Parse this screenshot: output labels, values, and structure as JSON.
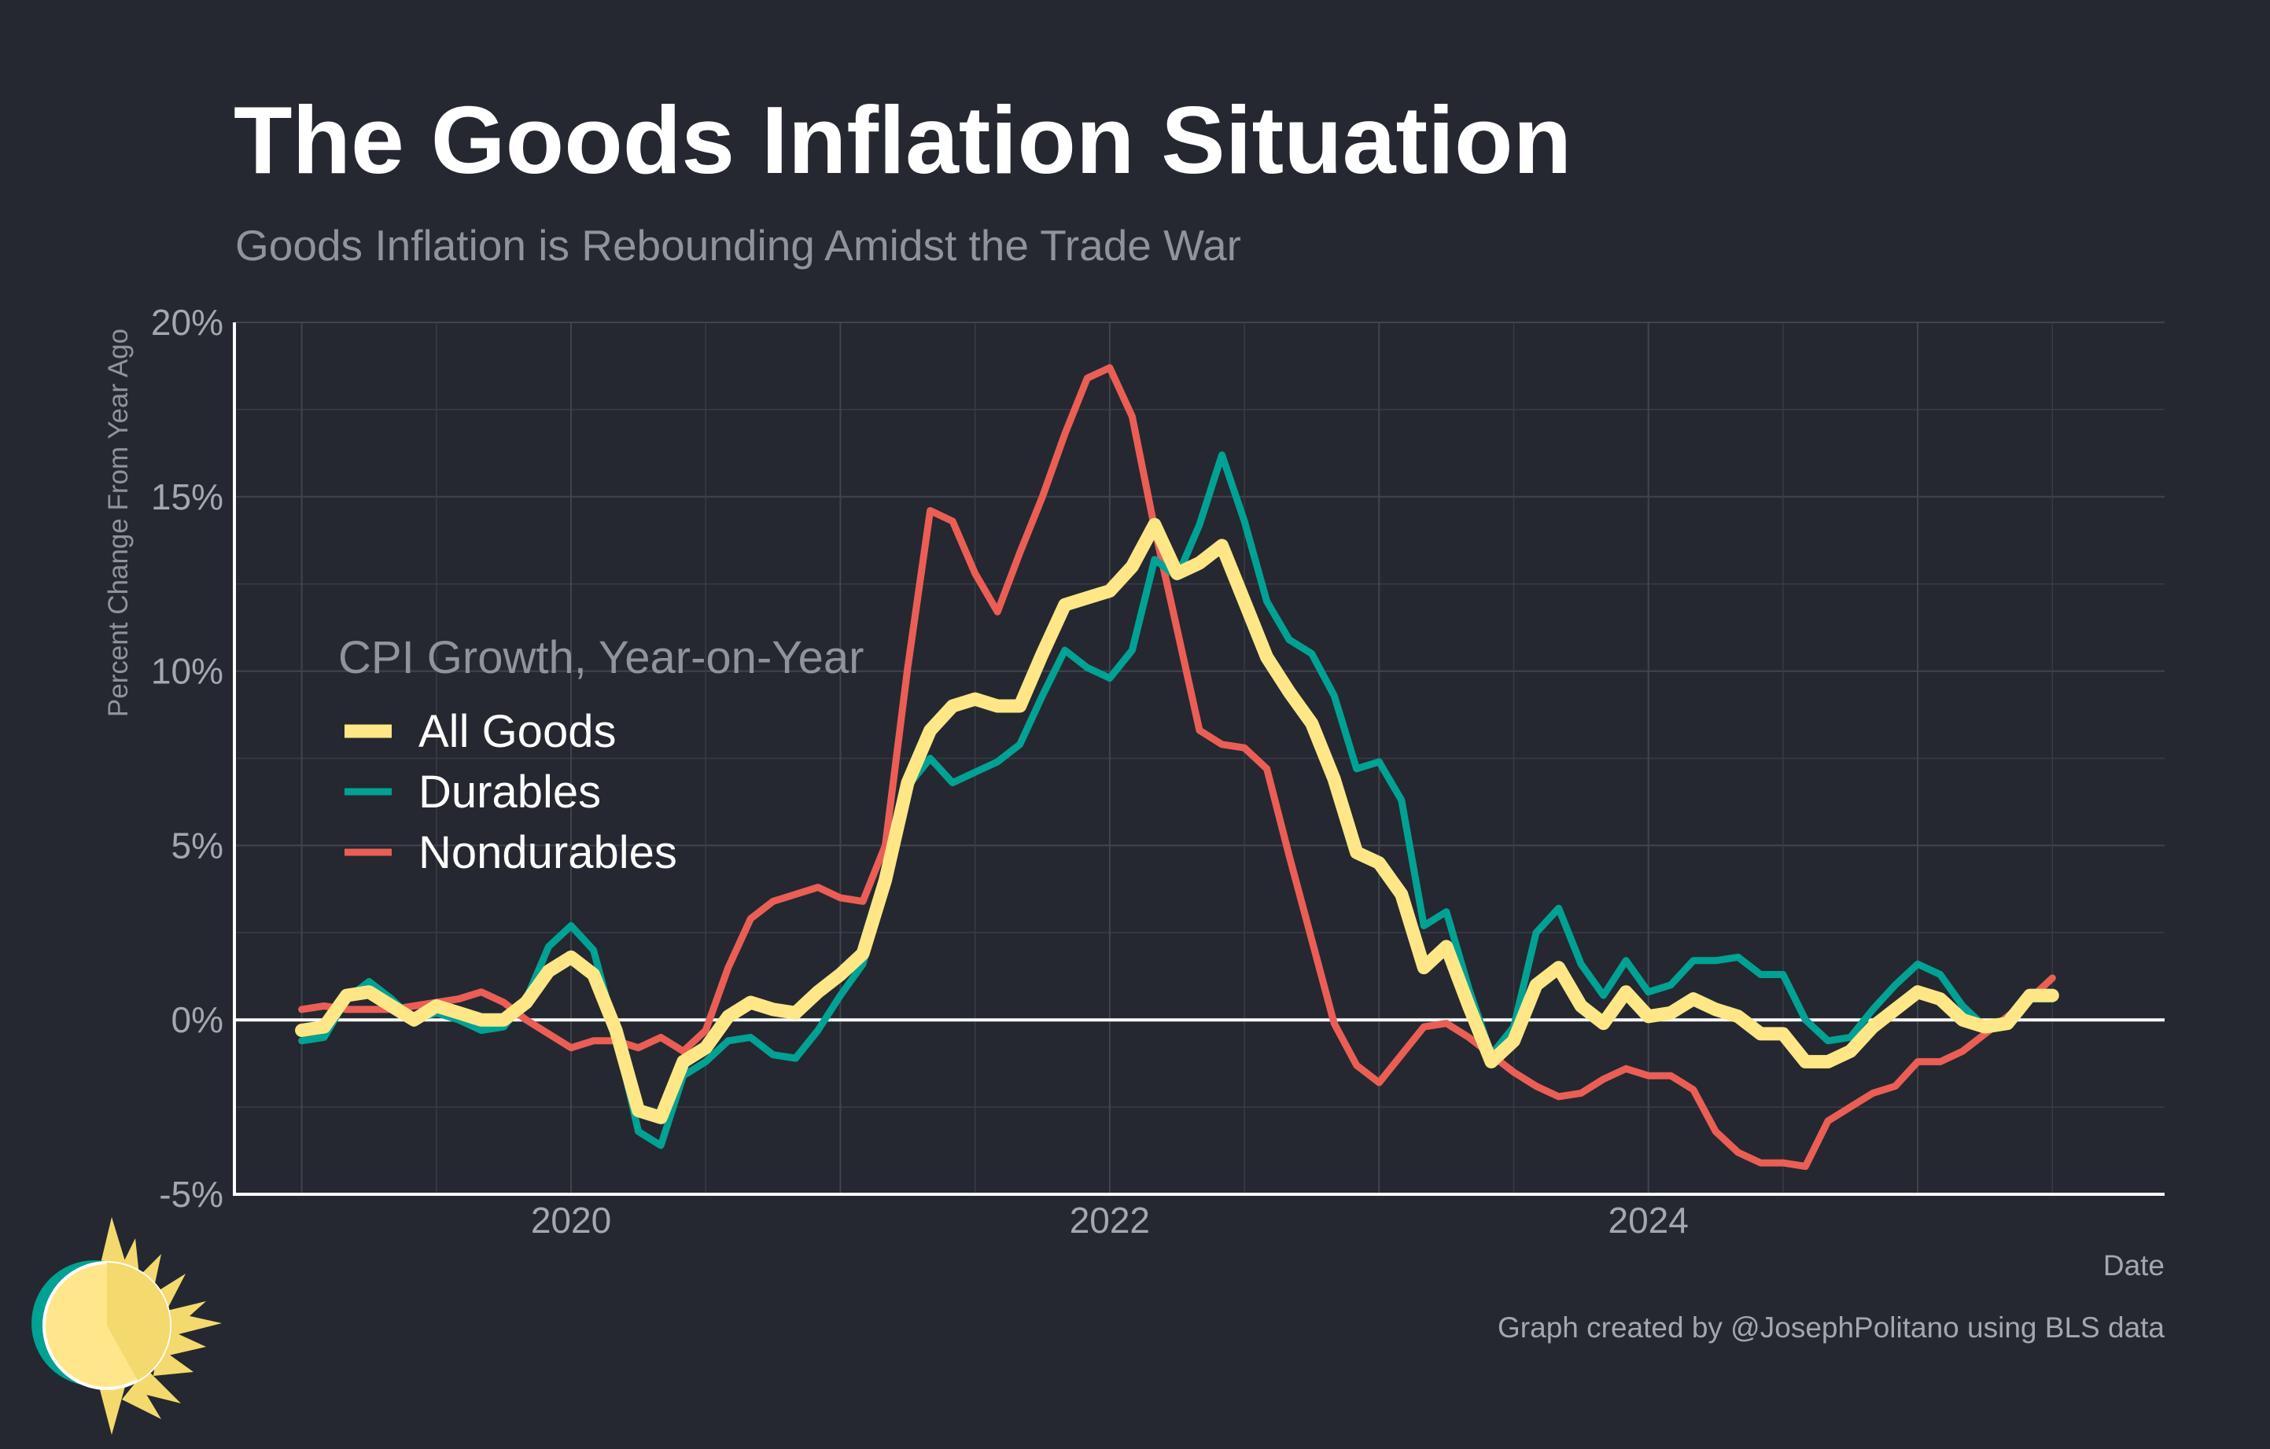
{
  "title": "The Goods Inflation Situation",
  "subtitle": "Goods Inflation is Rebounding Amidst the Trade War",
  "caption": "Graph created by @JosephPolitano using BLS data",
  "colors": {
    "background": "#252830",
    "all_goods": "#FFE787",
    "durables": "#00A294",
    "nondurables": "#EB5E55",
    "grid": "#41444C",
    "zero_line": "#FFFFFF"
  },
  "logo_icon": "sun-logo-icon",
  "chart_data": {
    "type": "line",
    "xlabel": "Date",
    "ylabel": "Percent Change From Year Ago",
    "x_start": "2019-01",
    "x_frequency": "monthly",
    "x_ticks": [
      "2020",
      "2022",
      "2024"
    ],
    "xlim": [
      "2018-10",
      "2025-12"
    ],
    "y_ticks": [
      "-5%",
      "0%",
      "5%",
      "10%",
      "15%",
      "20%"
    ],
    "ylim": [
      -5,
      20
    ],
    "grid": true,
    "legend_title": "CPI Growth, Year-on-Year",
    "legend_position": "left",
    "series": [
      {
        "name": "All Goods",
        "color": "#FFE787",
        "values": [
          -0.3,
          -0.2,
          0.7,
          0.8,
          0.4,
          0.0,
          0.4,
          0.2,
          0.0,
          0.0,
          0.5,
          1.4,
          1.8,
          1.3,
          -0.3,
          -2.6,
          -2.8,
          -1.2,
          -0.8,
          0.1,
          0.5,
          0.3,
          0.2,
          0.8,
          1.3,
          1.9,
          4.0,
          6.8,
          8.3,
          9.0,
          9.2,
          9.0,
          9.0,
          10.5,
          11.9,
          12.1,
          12.3,
          13.0,
          14.2,
          12.8,
          13.1,
          13.6,
          12.0,
          10.4,
          9.4,
          8.5,
          6.9,
          4.8,
          4.5,
          3.6,
          1.5,
          2.1,
          0.4,
          -1.2,
          -0.6,
          1.0,
          1.5,
          0.4,
          -0.1,
          0.8,
          0.1,
          0.2,
          0.6,
          0.3,
          0.1,
          -0.4,
          -0.4,
          -1.2,
          -1.2,
          -0.9,
          -0.2,
          0.3,
          0.8,
          0.6,
          0.0,
          -0.2,
          -0.1,
          0.7,
          0.7
        ]
      },
      {
        "name": "Durables",
        "color": "#00A294",
        "values": [
          -0.6,
          -0.5,
          0.6,
          1.1,
          0.6,
          0.0,
          0.2,
          0.0,
          -0.3,
          -0.2,
          0.6,
          2.1,
          2.7,
          2.0,
          -0.4,
          -3.2,
          -3.6,
          -1.6,
          -1.2,
          -0.6,
          -0.5,
          -1.0,
          -1.1,
          -0.3,
          0.7,
          1.6,
          4.0,
          6.7,
          7.5,
          6.8,
          7.1,
          7.4,
          7.9,
          9.3,
          10.6,
          10.1,
          9.8,
          10.6,
          13.2,
          12.7,
          14.2,
          16.2,
          14.3,
          12.0,
          10.9,
          10.5,
          9.3,
          7.2,
          7.4,
          6.3,
          2.7,
          3.1,
          0.9,
          -1.0,
          -0.2,
          2.5,
          3.2,
          1.6,
          0.7,
          1.7,
          0.8,
          1.0,
          1.7,
          1.7,
          1.8,
          1.3,
          1.3,
          0.0,
          -0.6,
          -0.5,
          0.3,
          1.0,
          1.6,
          1.3,
          0.4,
          -0.2,
          0.0,
          0.6,
          0.6
        ]
      },
      {
        "name": "Nondurables",
        "color": "#EB5E55",
        "values": [
          0.3,
          0.4,
          0.3,
          0.3,
          0.3,
          0.4,
          0.5,
          0.6,
          0.8,
          0.5,
          0.0,
          -0.4,
          -0.8,
          -0.6,
          -0.6,
          -0.8,
          -0.5,
          -0.9,
          -0.3,
          1.5,
          2.9,
          3.4,
          3.6,
          3.8,
          3.5,
          3.4,
          5.0,
          10.1,
          14.6,
          14.3,
          12.8,
          11.7,
          13.4,
          15.0,
          16.8,
          18.4,
          18.7,
          17.3,
          14.1,
          11.2,
          8.3,
          7.9,
          7.8,
          7.2,
          4.7,
          2.3,
          -0.1,
          -1.3,
          -1.8,
          -1.0,
          -0.2,
          -0.1,
          -0.5,
          -1.0,
          -1.5,
          -1.9,
          -2.2,
          -2.1,
          -1.7,
          -1.4,
          -1.6,
          -1.6,
          -2.0,
          -3.2,
          -3.8,
          -4.1,
          -4.1,
          -4.2,
          -2.9,
          -2.5,
          -2.1,
          -1.9,
          -1.2,
          -1.2,
          -0.9,
          -0.4,
          0.1,
          0.6,
          1.2
        ]
      }
    ]
  }
}
